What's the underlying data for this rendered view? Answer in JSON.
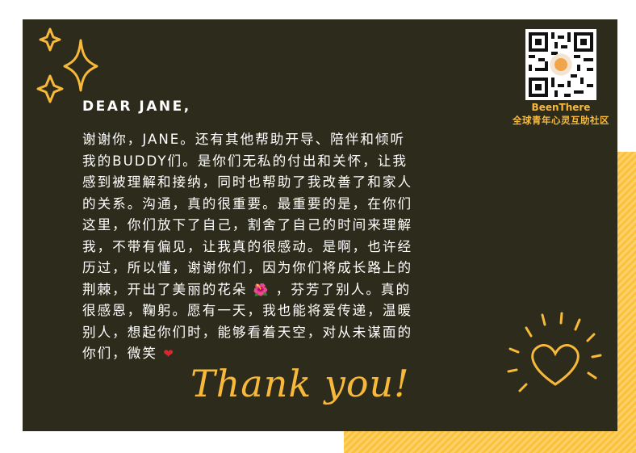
{
  "brand": {
    "name": "BeenThere",
    "tagline": "全球青年心灵互助社区"
  },
  "letter": {
    "greeting": "DEAR JANE,",
    "lines": [
      "谢谢你，JANE。还有其他帮助开导、陪伴和倾听",
      "我的BUDDY们。是你们无私的付出和关怀，让我",
      "感到被理解和接纳，同时也帮助了我改善了和家人",
      "的关系。沟通，真的很重要。最重要的是，在你们",
      "这里，你们放下了自己，割舍了自己的时间来理解",
      "我，不带有偏见，让我真的很感动。是啊，也许经",
      "历过，所以懂，谢谢你们，因为你们将成长路上的",
      "荆棘，开出了美丽的花朵",
      "，芬芳了别人。真的",
      "很感恩，鞠躬。愿有一天，我也能将爱传递，温暖",
      "别人，想起你们时，能够看着天空，对从未谋面的",
      "你们，微笑"
    ],
    "flower_emoji": "🌺",
    "heart_emoji": "❤"
  },
  "thanks": "Thank you!",
  "colors": {
    "card": "#2d2b1b",
    "accent": "#f8b93b",
    "stripe": "#fcc13a",
    "text": "#ffffff"
  },
  "icons": [
    "sparkle-icon",
    "qr-code-icon",
    "heart-burst-icon"
  ]
}
